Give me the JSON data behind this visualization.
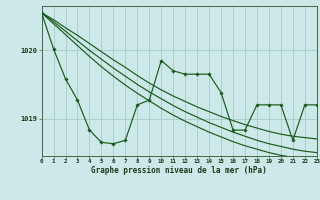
{
  "background_color": "#cce8e8",
  "grid_color": "#aacece",
  "line_color": "#1a5c1a",
  "xlim": [
    0,
    23
  ],
  "ylim": [
    1018.45,
    1020.65
  ],
  "yticks": [
    1019,
    1020
  ],
  "xticks": [
    0,
    1,
    2,
    3,
    4,
    5,
    6,
    7,
    8,
    9,
    10,
    11,
    12,
    13,
    14,
    15,
    16,
    17,
    18,
    19,
    20,
    21,
    22,
    23
  ],
  "xlabel": "Graphe pression niveau de la mer (hPa)",
  "trend1": [
    1020.55,
    1020.45,
    1020.33,
    1020.22,
    1020.1,
    1019.98,
    1019.86,
    1019.75,
    1019.63,
    1019.52,
    1019.42,
    1019.33,
    1019.25,
    1019.17,
    1019.1,
    1019.03,
    1018.97,
    1018.91,
    1018.86,
    1018.81,
    1018.77,
    1018.74,
    1018.72,
    1018.7
  ],
  "trend2": [
    1020.55,
    1020.42,
    1020.28,
    1020.14,
    1020.0,
    1019.87,
    1019.74,
    1019.62,
    1019.5,
    1019.39,
    1019.29,
    1019.19,
    1019.1,
    1019.02,
    1018.94,
    1018.87,
    1018.8,
    1018.74,
    1018.68,
    1018.63,
    1018.59,
    1018.55,
    1018.52,
    1018.5
  ],
  "trend3": [
    1020.55,
    1020.39,
    1020.23,
    1020.07,
    1019.91,
    1019.76,
    1019.62,
    1019.49,
    1019.37,
    1019.26,
    1019.15,
    1019.05,
    1018.96,
    1018.88,
    1018.8,
    1018.73,
    1018.66,
    1018.6,
    1018.55,
    1018.5,
    1018.46,
    1018.43,
    1018.41,
    1018.4
  ],
  "main": [
    1020.55,
    1020.02,
    1019.58,
    1019.27,
    1018.83,
    1018.65,
    1018.63,
    1018.68,
    1019.2,
    1019.27,
    1019.85,
    1019.7,
    1019.65,
    1019.65,
    1019.65,
    1019.38,
    1018.83,
    1018.83,
    1019.2,
    1019.2,
    1019.2,
    1018.68,
    1019.2,
    1019.2
  ]
}
